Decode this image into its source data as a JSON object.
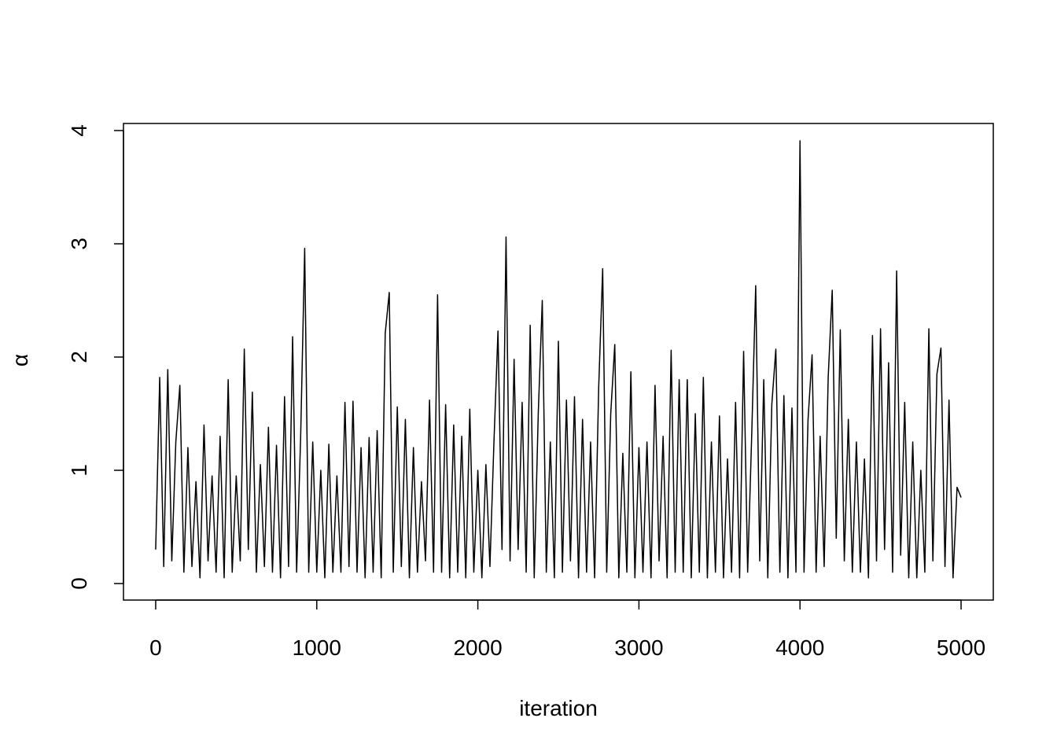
{
  "chart_data": {
    "type": "line",
    "xlabel": "iteration",
    "ylabel": "α",
    "color": "#000000",
    "xlim": [
      -200,
      5200
    ],
    "ylim": [
      -0.146,
      4.0625
    ],
    "xticks": [
      0,
      1000,
      2000,
      3000,
      4000,
      5000
    ],
    "yticks": [
      0,
      1,
      2,
      3,
      4
    ],
    "x": [
      0,
      25,
      50,
      75,
      100,
      125,
      150,
      175,
      200,
      225,
      250,
      275,
      300,
      325,
      350,
      375,
      400,
      425,
      450,
      475,
      500,
      525,
      550,
      575,
      600,
      625,
      650,
      675,
      700,
      725,
      750,
      775,
      800,
      825,
      850,
      875,
      900,
      925,
      950,
      975,
      1000,
      1025,
      1050,
      1075,
      1100,
      1125,
      1150,
      1175,
      1200,
      1225,
      1250,
      1275,
      1300,
      1325,
      1350,
      1375,
      1400,
      1425,
      1450,
      1475,
      1500,
      1525,
      1550,
      1575,
      1600,
      1625,
      1650,
      1675,
      1700,
      1725,
      1750,
      1775,
      1800,
      1825,
      1850,
      1875,
      1900,
      1925,
      1950,
      1975,
      2000,
      2025,
      2050,
      2075,
      2100,
      2125,
      2150,
      2175,
      2200,
      2225,
      2250,
      2275,
      2300,
      2325,
      2350,
      2375,
      2400,
      2425,
      2450,
      2475,
      2500,
      2525,
      2550,
      2575,
      2600,
      2625,
      2650,
      2675,
      2700,
      2725,
      2750,
      2775,
      2800,
      2825,
      2850,
      2875,
      2900,
      2925,
      2950,
      2975,
      3000,
      3025,
      3050,
      3075,
      3100,
      3125,
      3150,
      3175,
      3200,
      3225,
      3250,
      3275,
      3300,
      3325,
      3350,
      3375,
      3400,
      3425,
      3450,
      3475,
      3500,
      3525,
      3550,
      3575,
      3600,
      3625,
      3650,
      3675,
      3700,
      3725,
      3750,
      3775,
      3800,
      3825,
      3850,
      3875,
      3900,
      3925,
      3950,
      3975,
      4000,
      4025,
      4050,
      4075,
      4100,
      4125,
      4150,
      4175,
      4200,
      4225,
      4250,
      4275,
      4300,
      4325,
      4350,
      4375,
      4400,
      4425,
      4450,
      4475,
      4500,
      4525,
      4550,
      4575,
      4600,
      4625,
      4650,
      4675,
      4700,
      4725,
      4750,
      4775,
      4800,
      4825,
      4850,
      4875,
      4900,
      4925,
      4950,
      4975,
      5000
    ],
    "values": [
      0.3,
      1.82,
      0.15,
      1.89,
      0.2,
      1.25,
      1.75,
      0.1,
      1.2,
      0.15,
      0.9,
      0.05,
      1.4,
      0.2,
      0.95,
      0.1,
      1.3,
      0.05,
      1.8,
      0.1,
      0.95,
      0.2,
      2.07,
      0.3,
      1.69,
      0.1,
      1.05,
      0.15,
      1.38,
      0.1,
      1.22,
      0.05,
      1.65,
      0.15,
      2.18,
      0.1,
      1.3,
      2.96,
      0.1,
      1.25,
      0.1,
      1.0,
      0.05,
      1.23,
      0.1,
      0.95,
      0.1,
      1.6,
      0.15,
      1.61,
      0.1,
      1.2,
      0.05,
      1.29,
      0.1,
      1.35,
      0.05,
      2.21,
      2.57,
      0.1,
      1.56,
      0.15,
      1.45,
      0.05,
      1.2,
      0.1,
      0.9,
      0.2,
      1.62,
      0.1,
      2.55,
      0.1,
      1.58,
      0.05,
      1.4,
      0.1,
      1.3,
      0.05,
      1.54,
      0.1,
      1.0,
      0.05,
      1.05,
      0.15,
      1.25,
      2.23,
      0.3,
      3.06,
      0.2,
      1.98,
      0.3,
      1.6,
      0.1,
      2.28,
      0.05,
      1.5,
      2.5,
      0.1,
      1.25,
      0.05,
      2.14,
      0.1,
      1.62,
      0.2,
      1.65,
      0.05,
      1.45,
      0.1,
      1.25,
      0.05,
      1.72,
      2.78,
      0.1,
      1.5,
      2.11,
      0.05,
      1.15,
      0.1,
      1.87,
      0.05,
      1.2,
      0.1,
      1.25,
      0.05,
      1.75,
      0.2,
      1.3,
      0.05,
      2.06,
      0.1,
      1.8,
      0.1,
      1.8,
      0.05,
      1.5,
      0.1,
      1.82,
      0.05,
      1.25,
      0.1,
      1.48,
      0.05,
      1.1,
      0.1,
      1.6,
      0.05,
      2.05,
      0.1,
      1.3,
      2.63,
      0.2,
      1.8,
      0.05,
      1.58,
      2.07,
      0.1,
      1.66,
      0.05,
      1.55,
      0.1,
      3.91,
      0.1,
      1.45,
      2.02,
      0.1,
      1.3,
      0.15,
      1.82,
      2.59,
      0.4,
      2.24,
      0.2,
      1.45,
      0.1,
      1.25,
      0.1,
      1.1,
      0.05,
      2.19,
      0.2,
      2.25,
      0.3,
      1.95,
      0.1,
      2.76,
      0.25,
      1.6,
      0.05,
      1.25,
      0.05,
      1.0,
      0.1,
      2.25,
      0.2,
      1.85,
      2.08,
      0.15,
      1.62,
      0.05,
      0.85,
      0.76
    ]
  }
}
